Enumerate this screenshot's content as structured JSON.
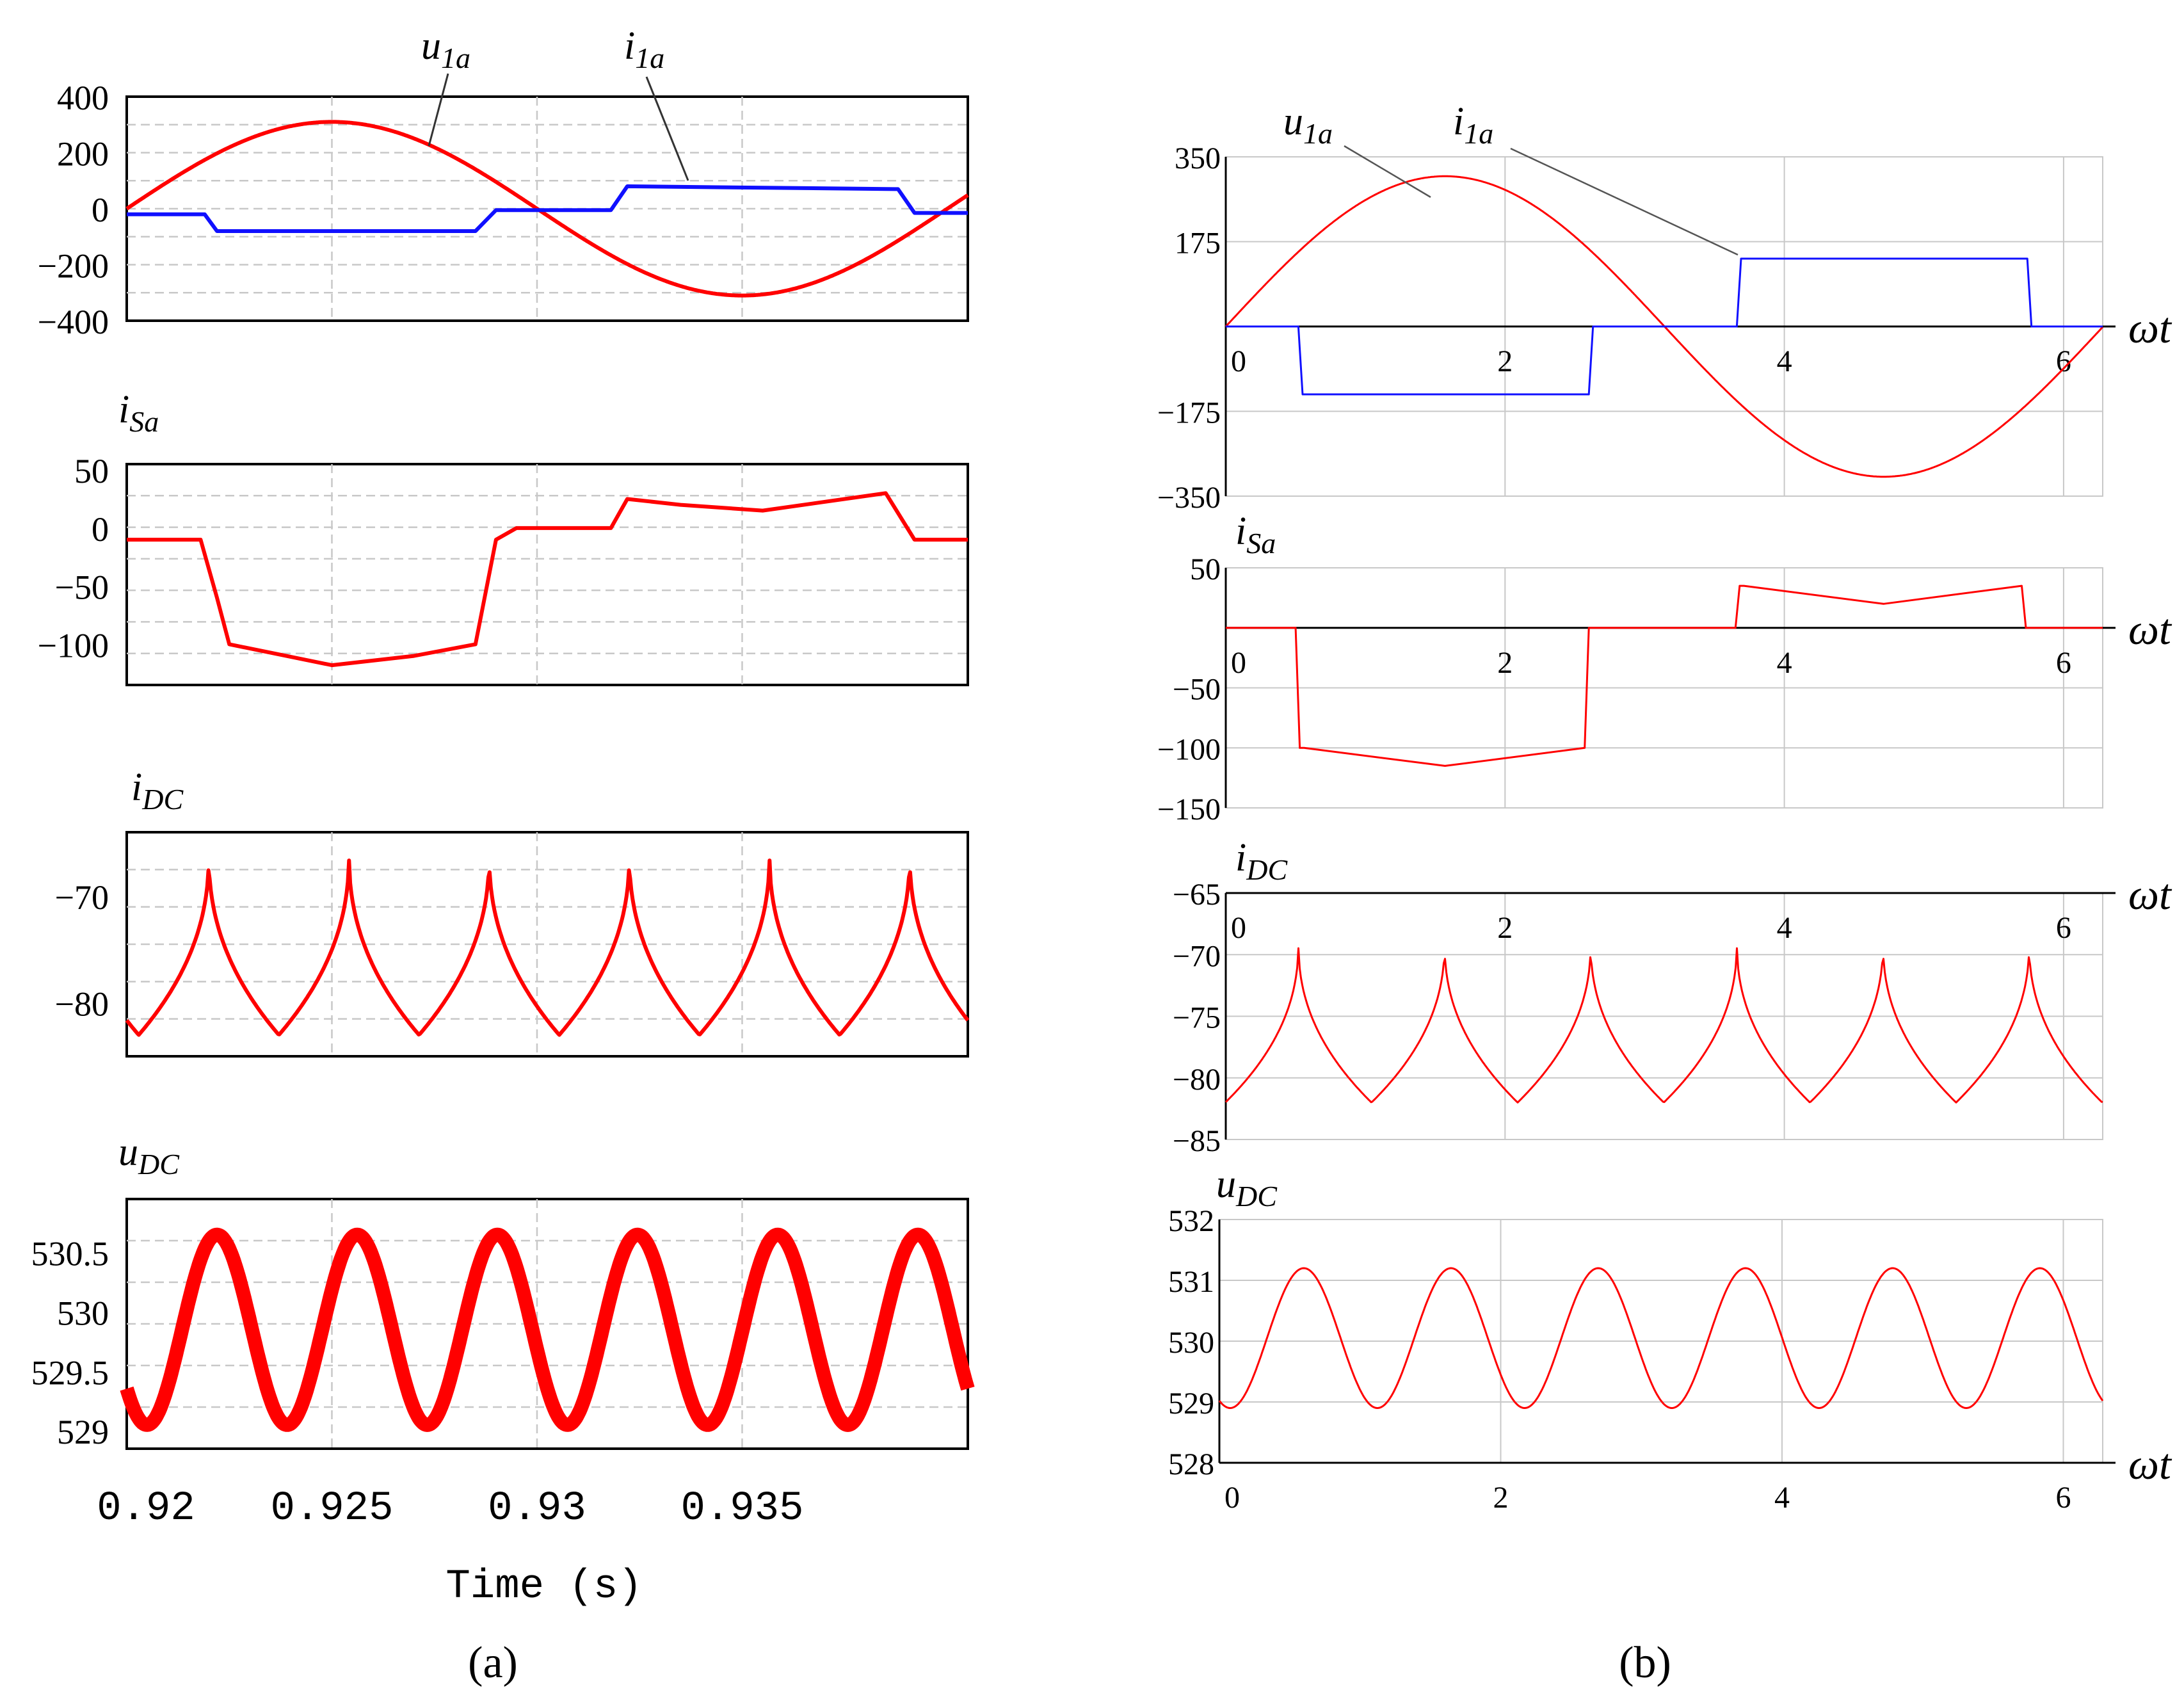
{
  "figure": {
    "panel_a_label": "(a)",
    "panel_b_label": "(b)",
    "colors": {
      "red": "#ff0000",
      "blue": "#1010ff",
      "grid": "#c8c8c8",
      "frame": "#000000"
    }
  },
  "chart_data": [
    {
      "id": "a1",
      "panel": "a",
      "type": "line",
      "title": "",
      "annotations": [
        {
          "text": "u1a"
        },
        {
          "text": "i1a"
        }
      ],
      "xlabel": "",
      "ylabel": "",
      "xlim": [
        0.92,
        0.9405
      ],
      "ylim": [
        -400,
        400
      ],
      "yticks": [
        400,
        200,
        0,
        -200,
        -400
      ],
      "ytick_labels": [
        "400",
        "200",
        "0",
        "−200",
        "−400"
      ],
      "series": [
        {
          "name": "u1a",
          "color": "#ff0000",
          "kind": "sine",
          "amplitude": 310,
          "phase_start_x": 0.92,
          "period": 0.02
        },
        {
          "name": "i1a",
          "color": "#1010ff",
          "kind": "step",
          "x": [
            0.92,
            0.9219,
            0.9222,
            0.9285,
            0.929,
            0.9318,
            0.9322,
            0.9388,
            0.9392,
            0.9405
          ],
          "y": [
            -20,
            -20,
            -80,
            -80,
            -5,
            -5,
            80,
            70,
            -15,
            -15
          ]
        }
      ]
    },
    {
      "id": "a2",
      "panel": "a",
      "type": "line",
      "title": "iSa",
      "xlabel": "",
      "ylabel": "",
      "xlim": [
        0.92,
        0.9405
      ],
      "ylim": [
        -135,
        55
      ],
      "yticks": [
        50,
        0,
        -50,
        -100
      ],
      "ytick_labels": [
        "50",
        "0",
        "−50",
        "−100"
      ],
      "series": [
        {
          "name": "iSa",
          "color": "#ff0000",
          "x": [
            0.92,
            0.9218,
            0.9222,
            0.9225,
            0.925,
            0.927,
            0.9285,
            0.929,
            0.9295,
            0.9318,
            0.9322,
            0.9335,
            0.9355,
            0.9385,
            0.9392,
            0.9405
          ],
          "y": [
            -10,
            -10,
            -60,
            -100,
            -118,
            -110,
            -100,
            -10,
            0,
            0,
            25,
            20,
            15,
            30,
            -10,
            -10
          ]
        }
      ]
    },
    {
      "id": "a3",
      "panel": "a",
      "type": "line",
      "title": "iDC",
      "xlabel": "",
      "ylabel": "",
      "xlim": [
        0.92,
        0.9405
      ],
      "ylim": [
        -85,
        -64
      ],
      "yticks": [
        -70,
        -80
      ],
      "ytick_labels": [
        "−70",
        "−80"
      ],
      "series": [
        {
          "name": "iDC",
          "color": "#ff0000",
          "kind": "cusp",
          "min": -83,
          "max": -66,
          "n_cycles": 6,
          "first_peak_x": 0.922
        }
      ]
    },
    {
      "id": "a4",
      "panel": "a",
      "type": "line",
      "title": "uDC",
      "xlabel": "Time (s)",
      "ylabel": "",
      "xlim": [
        0.92,
        0.9405
      ],
      "ylim": [
        528.85,
        530.95
      ],
      "xticks": [
        0.92,
        0.925,
        0.93,
        0.935
      ],
      "xtick_labels": [
        "0.92",
        "0.925",
        "0.93",
        "0.935"
      ],
      "yticks": [
        530.5,
        530,
        529.5,
        529
      ],
      "ytick_labels": [
        "530.5",
        "530",
        "529.5",
        "529"
      ],
      "series": [
        {
          "name": "uDC",
          "color": "#ff0000",
          "kind": "sine6",
          "mean": 529.85,
          "amplitude": 0.8,
          "n_cycles": 6,
          "first_peak_x": 0.9222
        }
      ]
    },
    {
      "id": "b1",
      "panel": "b",
      "type": "line",
      "title": "",
      "xlabel": "ωt",
      "ylabel": "",
      "annotations": [
        {
          "text": "u1a"
        },
        {
          "text": "i1a"
        }
      ],
      "xlim": [
        0,
        6.28
      ],
      "ylim": [
        -350,
        350
      ],
      "xticks": [
        0,
        2,
        4,
        6
      ],
      "xtick_labels": [
        "0",
        "2",
        "4",
        "6"
      ],
      "yticks": [
        350,
        175,
        -175,
        -350
      ],
      "ytick_labels": [
        "350",
        "175",
        "−175",
        "−350"
      ],
      "series": [
        {
          "name": "u1a",
          "color": "#ff0000",
          "kind": "sine",
          "amplitude": 310
        },
        {
          "name": "i1a",
          "color": "#1010ff",
          "kind": "step",
          "x": [
            0,
            0.52,
            0.55,
            2.6,
            2.63,
            3.66,
            3.69,
            5.74,
            5.77,
            6.28
          ],
          "y": [
            0,
            0,
            -140,
            -140,
            0,
            0,
            140,
            140,
            0,
            0
          ]
        }
      ]
    },
    {
      "id": "b2",
      "panel": "b",
      "type": "line",
      "title": "iSa",
      "xlabel": "ωt",
      "ylabel": "",
      "xlim": [
        0,
        6.28
      ],
      "ylim": [
        -150,
        50
      ],
      "xticks": [
        0,
        2,
        4,
        6
      ],
      "xtick_labels": [
        "0",
        "2",
        "4",
        "6"
      ],
      "yticks": [
        50,
        -50,
        -100,
        -150
      ],
      "ytick_labels": [
        "50",
        "−50",
        "−100",
        "−150"
      ],
      "series": [
        {
          "name": "iSa",
          "color": "#ff0000",
          "x": [
            0,
            0.5,
            0.53,
            0.56,
            1.57,
            2.57,
            2.6,
            2.63,
            3.65,
            3.68,
            3.71,
            4.71,
            5.7,
            5.73,
            5.76,
            6.28
          ],
          "y": [
            0,
            0,
            -100,
            -100,
            -115,
            -100,
            0,
            0,
            0,
            35,
            35,
            20,
            35,
            0,
            0,
            0
          ]
        }
      ]
    },
    {
      "id": "b3",
      "panel": "b",
      "type": "line",
      "title": "iDC",
      "xlabel": "ωt",
      "ylabel": "",
      "xlim": [
        0,
        6.28
      ],
      "ylim": [
        -85,
        -65
      ],
      "xticks": [
        0,
        2,
        4,
        6
      ],
      "xtick_labels": [
        "0",
        "2",
        "4",
        "6"
      ],
      "yticks": [
        -65,
        -70,
        -75,
        -80,
        -85
      ],
      "ytick_labels": [
        "−65",
        "−70",
        "−75",
        "−80",
        "−85"
      ],
      "series": [
        {
          "name": "iDC",
          "color": "#ff0000",
          "kind": "cusp",
          "min": -82,
          "max": -69,
          "n_cycles": 6,
          "first_peak_x": 0.52
        }
      ]
    },
    {
      "id": "b4",
      "panel": "b",
      "type": "line",
      "title": "uDC",
      "xlabel": "ωt",
      "ylabel": "",
      "xlim": [
        0,
        6.28
      ],
      "ylim": [
        528,
        532
      ],
      "xticks": [
        0,
        2,
        4,
        6
      ],
      "xtick_labels": [
        "0",
        "2",
        "4",
        "6"
      ],
      "yticks": [
        532,
        531,
        530,
        529,
        528
      ],
      "ytick_labels": [
        "532",
        "531",
        "530",
        "529",
        "528"
      ],
      "series": [
        {
          "name": "uDC",
          "color": "#ff0000",
          "kind": "sine6",
          "mean": 530.05,
          "amplitude": 1.15,
          "n_cycles": 6,
          "first_peak_x": 0.6
        }
      ]
    }
  ]
}
